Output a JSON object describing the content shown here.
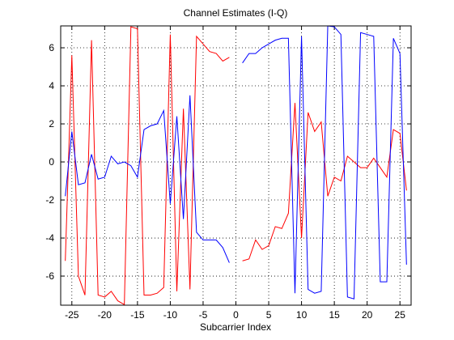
{
  "chart_data": {
    "type": "line",
    "title": "Channel Estimates (I-Q)",
    "xlabel": "Subcarrier Index",
    "x": [
      -26,
      -25,
      -24,
      -23,
      -22,
      -21,
      -20,
      -19,
      -18,
      -17,
      -16,
      -15,
      -14,
      -13,
      -12,
      -11,
      -10,
      -9,
      -8,
      -7,
      -6,
      -5,
      -4,
      -3,
      -2,
      -1,
      0,
      1,
      2,
      3,
      4,
      5,
      6,
      7,
      8,
      9,
      10,
      11,
      12,
      13,
      14,
      15,
      16,
      17,
      18,
      19,
      20,
      21,
      22,
      23,
      24,
      25,
      26
    ],
    "series": [
      {
        "color": "#ff0000",
        "values": [
          -5.2,
          5.6,
          -6,
          -7,
          6.4,
          -7,
          -7.1,
          -6.8,
          -7.3,
          -7.5,
          7.1,
          7.0,
          -7,
          -7.0,
          -6.9,
          -6.6,
          6.7,
          -6.8,
          2.8,
          -6.7,
          6.6,
          6.2,
          5.8,
          5.7,
          5.3,
          5.5,
          null,
          -5.2,
          -5.1,
          -4.1,
          -4.6,
          -4.4,
          -3.4,
          -3.5,
          -2.7,
          3.1,
          -4,
          2.6,
          1.6,
          2.1,
          -1.8,
          -0.8,
          -1.0,
          0.3,
          0.0,
          -0.3,
          -0.3,
          0.2,
          -0.3,
          -0.8,
          1.7,
          1.5,
          -1.5
        ]
      },
      {
        "color": "#0000ff",
        "values": [
          -1.8,
          1.6,
          -1.2,
          -1.1,
          0.4,
          -0.9,
          -0.8,
          0.3,
          -0.1,
          0,
          -0.2,
          -0.8,
          1.7,
          1.9,
          2.0,
          2.7,
          -2.2,
          2.4,
          -3,
          3.5,
          -3.7,
          -4.1,
          -4.1,
          -4.1,
          -4.5,
          -5.3,
          null,
          5.2,
          5.7,
          5.7,
          6.0,
          6.2,
          6.4,
          6.5,
          6.5,
          -6.9,
          6.6,
          -6.7,
          -6.9,
          -6.8,
          7.15,
          7.1,
          6.7,
          -7.1,
          -7.2,
          6.8,
          6.7,
          6.6,
          -6.3,
          -6.3,
          6.5,
          5.7,
          -5.4
        ]
      }
    ],
    "xlim": [
      -26.7,
      26.7
    ],
    "ylim": [
      -7.53,
      7.15
    ],
    "xticks": [
      -25,
      -20,
      -15,
      -10,
      -5,
      0,
      5,
      10,
      15,
      20,
      25
    ],
    "yticks": [
      -6,
      -4,
      -2,
      0,
      2,
      4,
      6
    ],
    "grid": true
  }
}
